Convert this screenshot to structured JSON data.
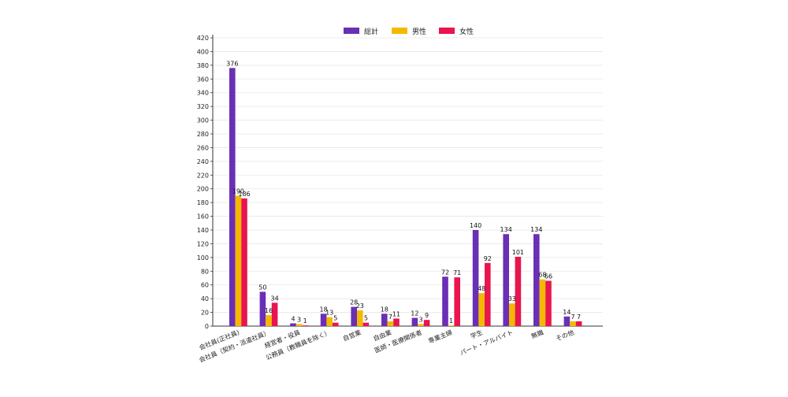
{
  "chart_data": {
    "type": "bar",
    "categories": [
      "会社員(正社員)",
      "会社員（契約・派遣社員）",
      "経営者・役員",
      "公務員（教職員を除く）",
      "自営業",
      "自由業",
      "医師・医療関係者",
      "専業主婦",
      "学生",
      "パート・アルバイト",
      "無職",
      "その他"
    ],
    "series": [
      {
        "name": "総計",
        "color": "#6a2fb5",
        "values": [
          376,
          50,
          4,
          18,
          28,
          18,
          12,
          72,
          140,
          134,
          134,
          14
        ]
      },
      {
        "name": "男性",
        "color": "#f5b800",
        "values": [
          190,
          16,
          3,
          13,
          23,
          7,
          3,
          1,
          48,
          33,
          68,
          7
        ]
      },
      {
        "name": "女性",
        "color": "#e8154f",
        "values": [
          186,
          34,
          1,
          5,
          5,
          11,
          9,
          71,
          92,
          101,
          66,
          7
        ]
      }
    ],
    "ylim": [
      0,
      420
    ],
    "ytick_step": 20,
    "grid": true,
    "legend_position": "top-center",
    "title": "",
    "xlabel": "",
    "ylabel": ""
  }
}
